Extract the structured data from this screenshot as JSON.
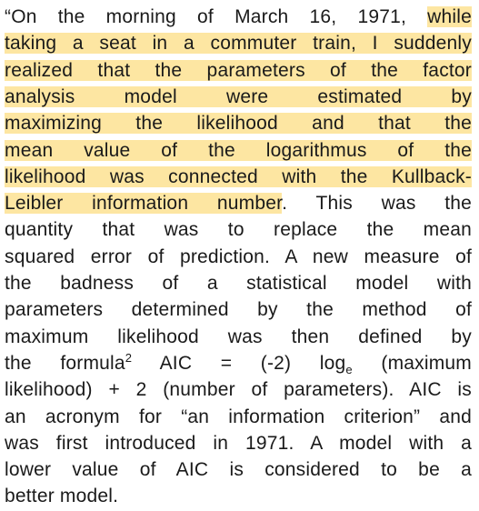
{
  "lines": [
    {
      "segments": [
        {
          "text": "“On the morning of March 16, 1971, ",
          "highlight": false
        },
        {
          "text": "while",
          "highlight": true
        }
      ]
    },
    {
      "segments": [
        {
          "text": "taking a seat in a commuter train, I suddenly",
          "highlight": true
        }
      ]
    },
    {
      "segments": [
        {
          "text": "realized that the parameters of the factor",
          "highlight": true
        }
      ]
    },
    {
      "segments": [
        {
          "text": "analysis model were estimated by",
          "highlight": true
        }
      ]
    },
    {
      "segments": [
        {
          "text": "maximizing the likelihood and that the",
          "highlight": true
        }
      ]
    },
    {
      "segments": [
        {
          "text": "mean value of the logarithmus of the",
          "highlight": true
        }
      ]
    },
    {
      "segments": [
        {
          "text": "likelihood was connected with the Kullback-",
          "highlight": true
        }
      ]
    },
    {
      "segments": [
        {
          "text": "Leibler information number",
          "highlight": true
        },
        {
          "text": ". This was the",
          "highlight": false
        }
      ]
    },
    {
      "segments": [
        {
          "text": "quantity that was to replace the mean",
          "highlight": false
        }
      ]
    },
    {
      "segments": [
        {
          "text": "squared error of prediction. A new measure of",
          "highlight": false
        }
      ]
    },
    {
      "segments": [
        {
          "text": "the badness of a statistical model with",
          "highlight": false
        }
      ]
    },
    {
      "segments": [
        {
          "text": "parameters determined by the method of",
          "highlight": false
        }
      ]
    },
    {
      "segments": [
        {
          "text": "maximum likelihood was then defined by",
          "highlight": false
        }
      ]
    },
    {
      "segments": [
        {
          "text": "the formula",
          "highlight": false
        },
        {
          "text": "2",
          "highlight": false,
          "script": "sup"
        },
        {
          "text": " AIC = (-2) log",
          "highlight": false
        },
        {
          "text": "e",
          "highlight": false,
          "script": "sub"
        },
        {
          "text": " (maximum",
          "highlight": false
        }
      ]
    },
    {
      "segments": [
        {
          "text": "likelihood) + 2 (number of parameters). AIC is",
          "highlight": false
        }
      ]
    },
    {
      "segments": [
        {
          "text": "an acronym for “an information criterion” and",
          "highlight": false
        }
      ]
    },
    {
      "segments": [
        {
          "text": "was first introduced in 1971. A model with a",
          "highlight": false
        }
      ]
    },
    {
      "segments": [
        {
          "text": "lower value of AIC is considered to be a",
          "highlight": false
        }
      ]
    },
    {
      "segments": [
        {
          "text": "better model.",
          "highlight": false
        }
      ]
    }
  ]
}
